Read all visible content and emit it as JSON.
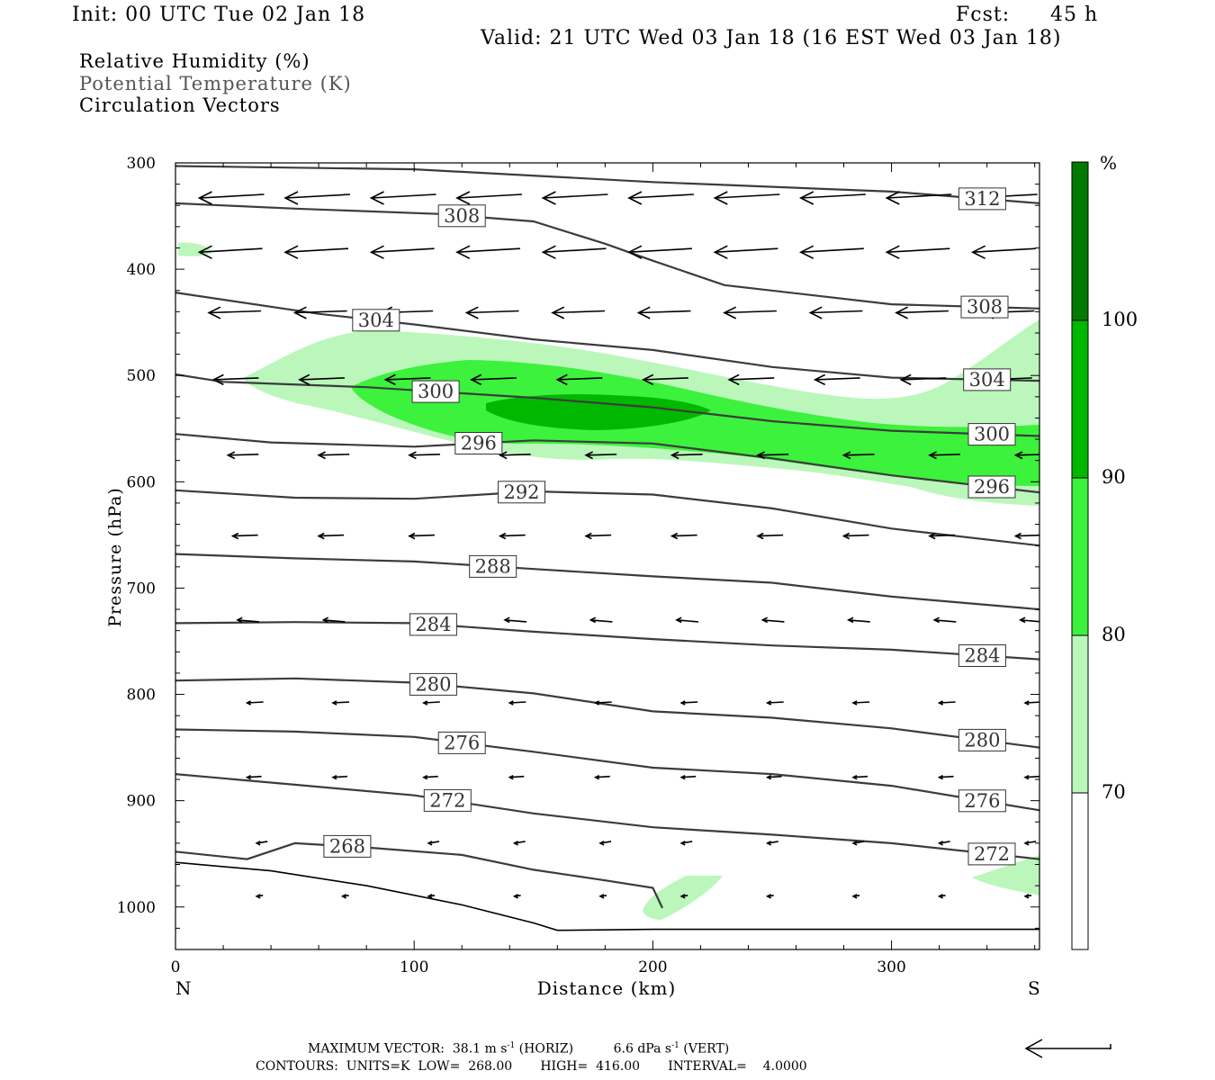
{
  "header": {
    "init": "Init: 00 UTC Tue 02 Jan 18",
    "fcst_label": "Fcst:",
    "fcst_value": "45 h",
    "valid": "Valid: 21 UTC Wed 03 Jan 18 (16 EST Wed 03 Jan 18)"
  },
  "legend": {
    "line1": "Relative Humidity (%)",
    "line2": "Potential Temperature (K)",
    "line3": "Circulation Vectors"
  },
  "footer": {
    "max_vector_label": "MAXIMUM VECTOR:",
    "max_vector_horiz": "38.1 m s",
    "horiz_tag": "(HORIZ)",
    "max_vector_vert": "6.6 dPa s",
    "vert_tag": "(VERT)",
    "exponent": "-1",
    "contours_line": "CONTOURS:  UNITS=K  LOW=  268.00       HIGH=  416.00       INTERVAL=    4.0000"
  },
  "colors": {
    "rh_70": "#bbf7bb",
    "rh_80": "#3cf23c",
    "rh_90": "#00b800",
    "rh_100": "#007a00",
    "contour": "#3c3c3c",
    "vector": "#000000"
  },
  "chart_data": {
    "type": "cross-section",
    "xlabel": "Distance (km)",
    "ylabel": "Pressure (hPa)",
    "x_ticks": [
      "0",
      "100",
      "200",
      "300"
    ],
    "y_ticks": [
      "300",
      "400",
      "500",
      "600",
      "700",
      "800",
      "900",
      "1000"
    ],
    "xlim": [
      0,
      362
    ],
    "ylim": [
      1040,
      300
    ],
    "end_labels": {
      "left": "N",
      "right": "S"
    },
    "colorbar": {
      "unit": "%",
      "levels": [
        "70",
        "80",
        "90",
        "100"
      ]
    },
    "theta_contours": [
      {
        "value": 312,
        "points": [
          [
            0,
            303
          ],
          [
            100,
            306
          ],
          [
            200,
            318
          ],
          [
            300,
            327
          ],
          [
            362,
            338
          ]
        ]
      },
      {
        "value": 308,
        "points": [
          [
            0,
            338
          ],
          [
            50,
            343
          ],
          [
            110,
            348
          ],
          [
            150,
            355
          ],
          [
            180,
            376
          ],
          [
            200,
            392
          ],
          [
            230,
            415
          ],
          [
            300,
            433
          ],
          [
            362,
            437
          ]
        ]
      },
      {
        "value": 304,
        "points": [
          [
            0,
            422
          ],
          [
            60,
            442
          ],
          [
            100,
            452
          ],
          [
            150,
            466
          ],
          [
            200,
            476
          ],
          [
            250,
            492
          ],
          [
            300,
            502
          ],
          [
            362,
            505
          ]
        ]
      },
      {
        "value": 300,
        "points": [
          [
            0,
            499
          ],
          [
            20,
            506
          ],
          [
            80,
            511
          ],
          [
            150,
            521
          ],
          [
            200,
            530
          ],
          [
            250,
            543
          ],
          [
            300,
            552
          ],
          [
            362,
            557
          ]
        ]
      },
      {
        "value": 296,
        "points": [
          [
            0,
            555
          ],
          [
            40,
            563
          ],
          [
            100,
            567
          ],
          [
            150,
            561
          ],
          [
            200,
            564
          ],
          [
            250,
            578
          ],
          [
            300,
            594
          ],
          [
            362,
            610
          ]
        ]
      },
      {
        "value": 292,
        "points": [
          [
            0,
            608
          ],
          [
            50,
            615
          ],
          [
            100,
            616
          ],
          [
            150,
            609
          ],
          [
            200,
            612
          ],
          [
            250,
            625
          ],
          [
            300,
            644
          ],
          [
            362,
            660
          ]
        ]
      },
      {
        "value": 288,
        "points": [
          [
            0,
            668
          ],
          [
            50,
            672
          ],
          [
            100,
            675
          ],
          [
            150,
            682
          ],
          [
            200,
            689
          ],
          [
            250,
            695
          ],
          [
            300,
            708
          ],
          [
            362,
            720
          ]
        ]
      },
      {
        "value": 284,
        "points": [
          [
            0,
            733
          ],
          [
            50,
            732
          ],
          [
            100,
            733
          ],
          [
            150,
            741
          ],
          [
            200,
            748
          ],
          [
            250,
            754
          ],
          [
            300,
            758
          ],
          [
            362,
            767
          ]
        ]
      },
      {
        "value": 280,
        "points": [
          [
            0,
            787
          ],
          [
            50,
            785
          ],
          [
            100,
            789
          ],
          [
            150,
            799
          ],
          [
            200,
            816
          ],
          [
            250,
            822
          ],
          [
            300,
            832
          ],
          [
            362,
            850
          ]
        ]
      },
      {
        "value": 276,
        "points": [
          [
            0,
            833
          ],
          [
            50,
            835
          ],
          [
            100,
            840
          ],
          [
            150,
            854
          ],
          [
            200,
            869
          ],
          [
            250,
            875
          ],
          [
            300,
            886
          ],
          [
            362,
            909
          ]
        ]
      },
      {
        "value": 272,
        "points": [
          [
            0,
            875
          ],
          [
            50,
            885
          ],
          [
            100,
            895
          ],
          [
            150,
            912
          ],
          [
            200,
            925
          ],
          [
            250,
            932
          ],
          [
            300,
            940
          ],
          [
            362,
            955
          ]
        ]
      },
      {
        "value": 268,
        "points": [
          [
            0,
            948
          ],
          [
            30,
            955
          ],
          [
            50,
            940
          ],
          [
            80,
            944
          ],
          [
            120,
            951
          ],
          [
            150,
            965
          ],
          [
            180,
            975
          ],
          [
            200,
            982
          ],
          [
            204,
            1001
          ]
        ]
      }
    ],
    "max_vector_horiz_ms": 38.1,
    "max_vector_vert_dpas": 6.6
  }
}
